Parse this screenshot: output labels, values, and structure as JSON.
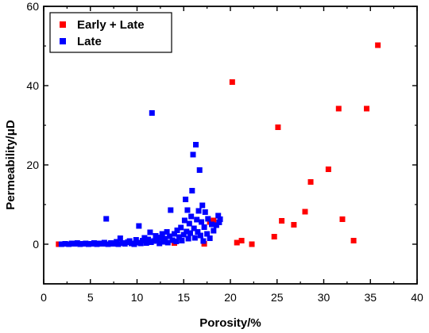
{
  "chart_data": {
    "type": "scatter",
    "xlabel": "Porosity/%",
    "ylabel": "Permeability/μD",
    "xlim": [
      0,
      40
    ],
    "ylim": [
      -10,
      60
    ],
    "x_ticks": [
      0,
      5,
      10,
      15,
      20,
      25,
      30,
      35,
      40
    ],
    "y_ticks": [
      0,
      20,
      40,
      60
    ],
    "grid": false,
    "legend_position": "top-left",
    "series": [
      {
        "name": "Early + Late",
        "color": "#ff0000",
        "marker": "square",
        "points": [
          [
            1.6,
            0.0
          ],
          [
            14.0,
            0.3
          ],
          [
            17.2,
            0.1
          ],
          [
            17.8,
            5.6
          ],
          [
            18.2,
            6.0
          ],
          [
            20.2,
            40.9
          ],
          [
            20.7,
            0.4
          ],
          [
            21.2,
            0.9
          ],
          [
            22.3,
            0.0
          ],
          [
            24.7,
            1.9
          ],
          [
            25.1,
            29.5
          ],
          [
            25.5,
            5.9
          ],
          [
            26.8,
            4.9
          ],
          [
            28.0,
            8.2
          ],
          [
            28.6,
            15.7
          ],
          [
            30.5,
            18.9
          ],
          [
            31.6,
            34.2
          ],
          [
            32.0,
            6.3
          ],
          [
            33.2,
            0.9
          ],
          [
            34.6,
            34.2
          ],
          [
            35.8,
            50.2
          ]
        ]
      },
      {
        "name": "Late",
        "color": "#0000ff",
        "marker": "square",
        "points": [
          [
            1.9,
            0.0
          ],
          [
            2.3,
            0.1
          ],
          [
            2.7,
            0.0
          ],
          [
            3.0,
            0.2
          ],
          [
            3.3,
            0.1
          ],
          [
            3.6,
            0.3
          ],
          [
            3.9,
            0.0
          ],
          [
            4.2,
            0.1
          ],
          [
            4.5,
            0.2
          ],
          [
            4.8,
            0.0
          ],
          [
            5.1,
            0.1
          ],
          [
            5.4,
            0.3
          ],
          [
            5.7,
            0.0
          ],
          [
            6.0,
            0.2
          ],
          [
            6.3,
            0.1
          ],
          [
            6.5,
            0.4
          ],
          [
            6.7,
            6.4
          ],
          [
            6.9,
            0.0
          ],
          [
            7.2,
            0.3
          ],
          [
            7.5,
            0.1
          ],
          [
            7.8,
            0.6
          ],
          [
            8.0,
            0.0
          ],
          [
            8.2,
            1.5
          ],
          [
            8.4,
            0.3
          ],
          [
            8.7,
            0.1
          ],
          [
            9.0,
            0.5
          ],
          [
            9.2,
            0.8
          ],
          [
            9.4,
            0.2
          ],
          [
            9.7,
            0.0
          ],
          [
            9.9,
            1.1
          ],
          [
            10.1,
            0.4
          ],
          [
            10.2,
            4.6
          ],
          [
            10.4,
            0.2
          ],
          [
            10.6,
            0.9
          ],
          [
            10.8,
            1.6
          ],
          [
            11.0,
            0.3
          ],
          [
            11.2,
            1.2
          ],
          [
            11.4,
            3.0
          ],
          [
            11.5,
            0.5
          ],
          [
            11.6,
            33.1
          ],
          [
            11.8,
            0.8
          ],
          [
            12.0,
            2.1
          ],
          [
            12.2,
            1.0
          ],
          [
            12.4,
            0.2
          ],
          [
            12.5,
            1.7
          ],
          [
            12.7,
            2.6
          ],
          [
            12.8,
            0.6
          ],
          [
            13.0,
            1.4
          ],
          [
            13.2,
            3.1
          ],
          [
            13.3,
            0.4
          ],
          [
            13.5,
            2.0
          ],
          [
            13.6,
            8.6
          ],
          [
            13.8,
            1.0
          ],
          [
            14.0,
            2.6
          ],
          [
            14.2,
            0.7
          ],
          [
            14.3,
            3.5
          ],
          [
            14.5,
            1.8
          ],
          [
            14.7,
            4.2
          ],
          [
            14.8,
            0.9
          ],
          [
            15.0,
            2.4
          ],
          [
            15.1,
            6.0
          ],
          [
            15.2,
            11.3
          ],
          [
            15.3,
            3.2
          ],
          [
            15.4,
            8.6
          ],
          [
            15.5,
            1.4
          ],
          [
            15.6,
            5.2
          ],
          [
            15.7,
            2.8
          ],
          [
            15.8,
            7.0
          ],
          [
            15.9,
            13.5
          ],
          [
            16.0,
            22.6
          ],
          [
            16.1,
            4.0
          ],
          [
            16.2,
            1.6
          ],
          [
            16.3,
            25.1
          ],
          [
            16.4,
            6.2
          ],
          [
            16.5,
            3.1
          ],
          [
            16.6,
            8.4
          ],
          [
            16.7,
            18.7
          ],
          [
            16.8,
            2.2
          ],
          [
            16.9,
            5.6
          ],
          [
            17.0,
            9.8
          ],
          [
            17.1,
            0.8
          ],
          [
            17.2,
            4.3
          ],
          [
            17.3,
            8.1
          ],
          [
            17.5,
            2.6
          ],
          [
            17.6,
            6.4
          ],
          [
            17.8,
            1.5
          ],
          [
            18.0,
            5.0
          ],
          [
            18.2,
            3.4
          ],
          [
            18.5,
            4.8
          ],
          [
            18.7,
            7.2
          ],
          [
            18.8,
            5.5
          ],
          [
            18.9,
            6.3
          ]
        ]
      }
    ]
  }
}
